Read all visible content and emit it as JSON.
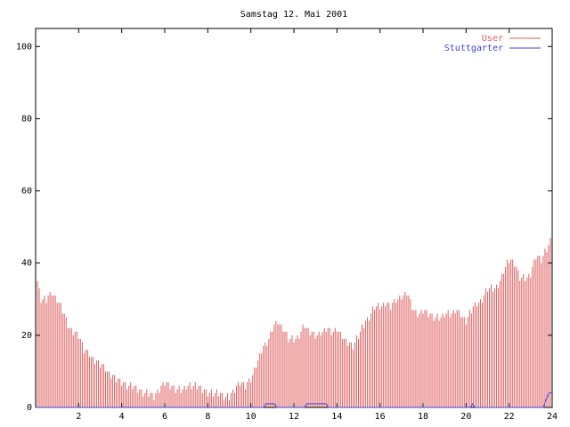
{
  "chart_data": {
    "type": "bar",
    "title": "Samstag 12. Mai 2001",
    "xlabel": "",
    "ylabel": "",
    "xlim": [
      0,
      24
    ],
    "ylim": [
      0,
      105
    ],
    "x_ticks": [
      2,
      4,
      6,
      8,
      10,
      12,
      14,
      16,
      18,
      20,
      22,
      24
    ],
    "y_ticks": [
      0,
      20,
      40,
      60,
      80,
      100
    ],
    "grid": false,
    "legend_position": "top-right",
    "interval_hours": 0.08333,
    "series": [
      {
        "name": "User",
        "color": "#e06060",
        "style": "impulses",
        "keyframes": [
          [
            0.0,
            37
          ],
          [
            0.25,
            30
          ],
          [
            0.5,
            30
          ],
          [
            0.75,
            32
          ],
          [
            1.0,
            30
          ],
          [
            1.25,
            27
          ],
          [
            1.5,
            23
          ],
          [
            1.75,
            21
          ],
          [
            2.0,
            20
          ],
          [
            2.25,
            16
          ],
          [
            2.5,
            15
          ],
          [
            2.75,
            13
          ],
          [
            3.0,
            12
          ],
          [
            3.25,
            11
          ],
          [
            3.5,
            9
          ],
          [
            3.75,
            8
          ],
          [
            4.0,
            7
          ],
          [
            4.25,
            6
          ],
          [
            4.5,
            6
          ],
          [
            4.75,
            5
          ],
          [
            5.0,
            4
          ],
          [
            5.25,
            4
          ],
          [
            5.5,
            3
          ],
          [
            5.75,
            5
          ],
          [
            6.0,
            7
          ],
          [
            6.25,
            6
          ],
          [
            6.5,
            5
          ],
          [
            6.75,
            5
          ],
          [
            7.0,
            6
          ],
          [
            7.25,
            6
          ],
          [
            7.5,
            6
          ],
          [
            7.75,
            5
          ],
          [
            8.0,
            4
          ],
          [
            8.25,
            4
          ],
          [
            8.5,
            4
          ],
          [
            8.75,
            3
          ],
          [
            9.0,
            3
          ],
          [
            9.25,
            5
          ],
          [
            9.5,
            7
          ],
          [
            9.75,
            6
          ],
          [
            10.0,
            8
          ],
          [
            10.25,
            12
          ],
          [
            10.5,
            16
          ],
          [
            10.75,
            18
          ],
          [
            11.0,
            22
          ],
          [
            11.25,
            24
          ],
          [
            11.5,
            22
          ],
          [
            11.75,
            19
          ],
          [
            12.0,
            19
          ],
          [
            12.25,
            20
          ],
          [
            12.5,
            23
          ],
          [
            12.75,
            21
          ],
          [
            13.0,
            20
          ],
          [
            13.25,
            21
          ],
          [
            13.5,
            22
          ],
          [
            13.75,
            21
          ],
          [
            14.0,
            22
          ],
          [
            14.25,
            20
          ],
          [
            14.5,
            18
          ],
          [
            14.75,
            17
          ],
          [
            15.0,
            20
          ],
          [
            15.25,
            23
          ],
          [
            15.5,
            25
          ],
          [
            15.75,
            28
          ],
          [
            16.0,
            28
          ],
          [
            16.25,
            29
          ],
          [
            16.5,
            28
          ],
          [
            16.75,
            30
          ],
          [
            17.0,
            31
          ],
          [
            17.25,
            32
          ],
          [
            17.5,
            28
          ],
          [
            17.75,
            26
          ],
          [
            18.0,
            27
          ],
          [
            18.25,
            26
          ],
          [
            18.5,
            25
          ],
          [
            18.75,
            25
          ],
          [
            19.0,
            26
          ],
          [
            19.25,
            26
          ],
          [
            19.5,
            27
          ],
          [
            19.75,
            26
          ],
          [
            20.0,
            24
          ],
          [
            20.25,
            27
          ],
          [
            20.5,
            29
          ],
          [
            20.75,
            30
          ],
          [
            21.0,
            33
          ],
          [
            21.25,
            33
          ],
          [
            21.5,
            34
          ],
          [
            21.75,
            38
          ],
          [
            22.0,
            41
          ],
          [
            22.25,
            40
          ],
          [
            22.5,
            36
          ],
          [
            22.75,
            36
          ],
          [
            23.0,
            37
          ],
          [
            23.25,
            42
          ],
          [
            23.5,
            41
          ],
          [
            23.75,
            44
          ],
          [
            24.0,
            47
          ]
        ]
      },
      {
        "name": "Stuttgarter",
        "color": "#4040e0",
        "style": "line",
        "points": [
          [
            0.0,
            0
          ],
          [
            10.6,
            0
          ],
          [
            10.7,
            1
          ],
          [
            11.1,
            1
          ],
          [
            11.2,
            0
          ],
          [
            12.5,
            0
          ],
          [
            12.6,
            1
          ],
          [
            13.5,
            1
          ],
          [
            13.6,
            0
          ],
          [
            20.2,
            0
          ],
          [
            20.3,
            1
          ],
          [
            20.4,
            0
          ],
          [
            23.6,
            0
          ],
          [
            23.7,
            2
          ],
          [
            23.85,
            4
          ],
          [
            24.0,
            4
          ]
        ]
      }
    ]
  }
}
